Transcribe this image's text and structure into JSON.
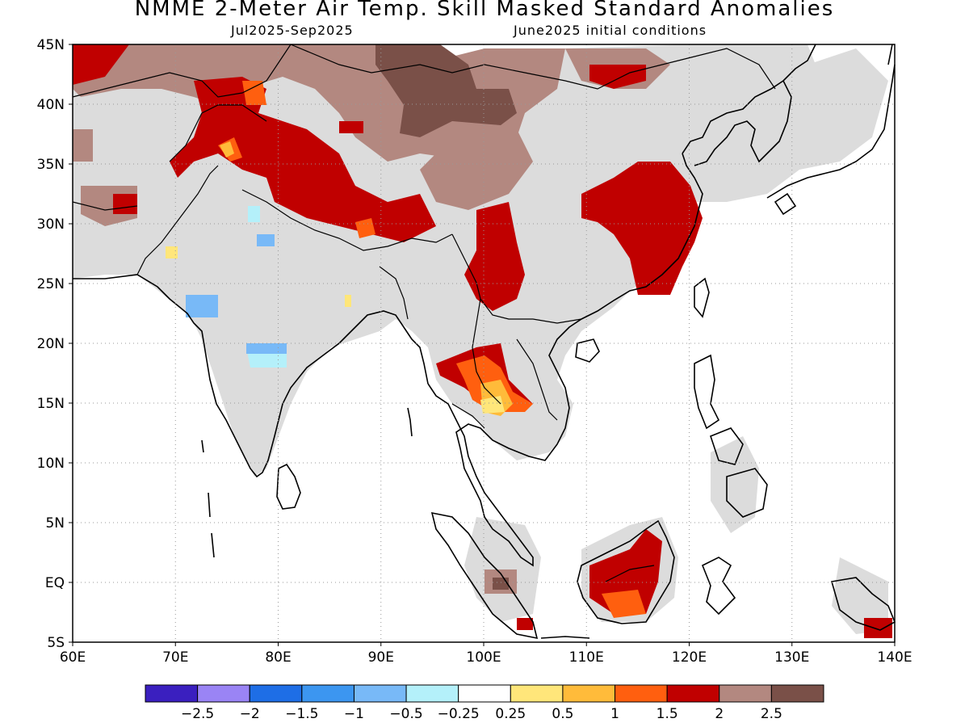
{
  "title": "NMME 2-Meter Air Temp. Skill Masked Standard Anomalies",
  "period": "Jul2025-Sep2025",
  "initial_conditions": "June2025 initial conditions",
  "lat_labels": [
    "45N",
    "40N",
    "35N",
    "30N",
    "25N",
    "20N",
    "15N",
    "10N",
    "5N",
    "EQ",
    "5S"
  ],
  "lon_labels": [
    "60E",
    "70E",
    "80E",
    "90E",
    "100E",
    "110E",
    "120E",
    "130E",
    "140E"
  ],
  "colorbar": {
    "colors": [
      "#3a1fbf",
      "#9a84f5",
      "#1e6ee6",
      "#3c96f0",
      "#78b9f7",
      "#b4f0fa",
      "#ffffff",
      "#ffe67a",
      "#ffbb3a",
      "#ff5f0f",
      "#c00000",
      "#b38880",
      "#7a5048"
    ],
    "labels": [
      "-2.5",
      "-2",
      "-1.5",
      "-1",
      "-0.5",
      "-0.25",
      "0.25",
      "0.5",
      "1",
      "1.5",
      "2",
      "2.5"
    ]
  },
  "map_colors": {
    "gray": "#dcdcdc",
    "tan": "#b38880",
    "brown": "#7a5048",
    "red": "#c00000",
    "orange": "#ff5f0f",
    "lightorange": "#ffbb3a",
    "yellow": "#ffe67a",
    "lightblue": "#b4f0fa",
    "blue": "#78b9f7",
    "coast": "#000000"
  }
}
